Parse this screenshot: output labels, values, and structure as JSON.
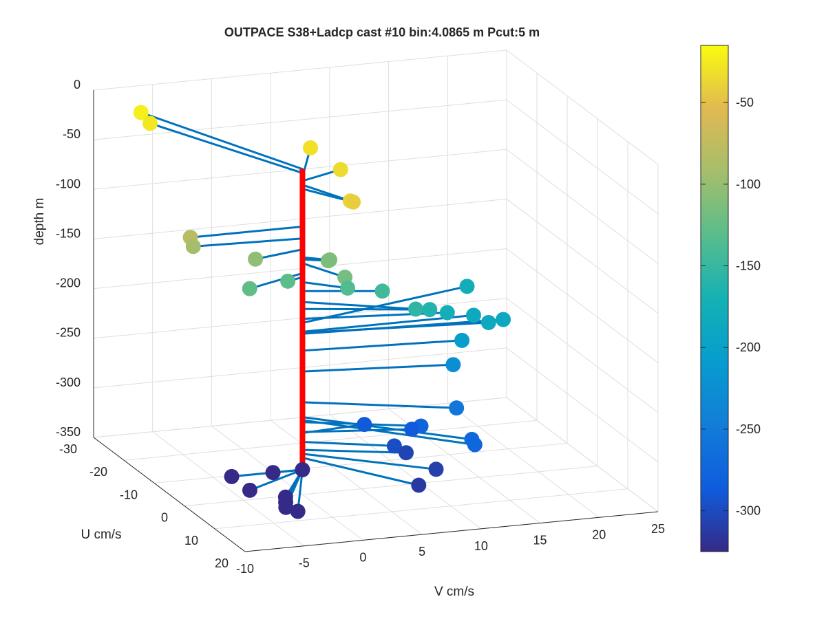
{
  "chart_data": {
    "type": "scatter",
    "title": "OUTPACE S38+Ladcp cast #10 bin:4.0865 m  Pcut:5 m",
    "xlabel": "V cm/s",
    "ylabel": "U cm/s",
    "zlabel": "depth m",
    "xlim": [
      -10,
      25
    ],
    "ylim": [
      -30,
      20
    ],
    "zlim": [
      -350,
      0
    ],
    "xticks": [
      "-10",
      "-5",
      "0",
      "5",
      "10",
      "15",
      "20",
      "25"
    ],
    "yticks": [
      "-30",
      "-20",
      "-10",
      "0",
      "10",
      "20"
    ],
    "zticks": [
      "0",
      "-50",
      "-100",
      "-150",
      "-200",
      "-250",
      "-300",
      "-350"
    ],
    "colorbar": {
      "colormap": "parula",
      "range": [
        -325,
        -15
      ],
      "ticks": [
        "-50",
        "-100",
        "-150",
        "-200",
        "-250",
        "-300"
      ]
    },
    "grid": true,
    "profile_line_color": "#ff0000",
    "vector_line_color": "#0072bd",
    "series": [
      {
        "points": [
          {
            "depth": -22,
            "v": -6.5,
            "u": -28
          },
          {
            "depth": -26,
            "v": -6.5,
            "u": -25
          },
          {
            "depth": -30,
            "v": 3.5,
            "u": -11
          },
          {
            "depth": -34,
            "v": 4.0,
            "u": -3
          },
          {
            "depth": -38,
            "v": 2.0,
            "u": 8
          },
          {
            "depth": -42,
            "v": 2.5,
            "u": 7
          },
          {
            "depth": -80,
            "v": -9.5,
            "u": 0
          },
          {
            "depth": -92,
            "v": -9.0,
            "u": -1
          },
          {
            "depth": -103,
            "v": -4.5,
            "u": 2
          },
          {
            "depth": -111,
            "v": 1.8,
            "u": 2
          },
          {
            "depth": -113,
            "v": 1.8,
            "u": 1.5
          },
          {
            "depth": -117,
            "v": 1.8,
            "u": 7
          },
          {
            "depth": -127,
            "v": -5.5,
            "u": 4
          },
          {
            "depth": -131,
            "v": -1.5,
            "u": 1
          },
          {
            "depth": -136,
            "v": 2.8,
            "u": 4
          },
          {
            "depth": -145,
            "v": 6.0,
            "u": 3
          },
          {
            "depth": -156,
            "v": 7.8,
            "u": 7
          },
          {
            "depth": -163,
            "v": 9.5,
            "u": 5
          },
          {
            "depth": -173,
            "v": 11.5,
            "u": 3
          },
          {
            "depth": -177,
            "v": 16.0,
            "u": -8
          },
          {
            "depth": -186,
            "v": 14.5,
            "u": 0
          },
          {
            "depth": -187,
            "v": 15.0,
            "u": 3
          },
          {
            "depth": -188,
            "v": 16.5,
            "u": 2
          },
          {
            "depth": -205,
            "v": 13.0,
            "u": 2
          },
          {
            "depth": -226,
            "v": 12.0,
            "u": 3
          },
          {
            "depth": -257,
            "v": 11.0,
            "u": 8
          },
          {
            "depth": -272,
            "v": 10.5,
            "u": 15
          },
          {
            "depth": -275,
            "v": 10.5,
            "u": 16
          },
          {
            "depth": -277,
            "v": 8.5,
            "u": 6
          },
          {
            "depth": -287,
            "v": 8.5,
            "u": 3
          },
          {
            "depth": -288,
            "v": 5.5,
            "u": -1
          },
          {
            "depth": -297,
            "v": 6.5,
            "u": 5
          },
          {
            "depth": -305,
            "v": 7.5,
            "u": 5
          },
          {
            "depth": -309,
            "v": 8.5,
            "u": 11
          },
          {
            "depth": -313,
            "v": 6.0,
            "u": 15
          }
        ]
      },
      {
        "points": [
          {
            "depth": -325,
            "v": 0.0,
            "u": 0
          },
          {
            "depth": -325,
            "v": -2.5,
            "u": 0
          },
          {
            "depth": -325,
            "v": -6.0,
            "u": 0
          },
          {
            "depth": -325,
            "v": -6.0,
            "u": 6
          },
          {
            "depth": -325,
            "v": -4.0,
            "u": 10
          },
          {
            "depth": -325,
            "v": -4.5,
            "u": 12
          },
          {
            "depth": -325,
            "v": -5.0,
            "u": 14
          },
          {
            "depth": -325,
            "v": -4.5,
            "u": 16
          }
        ]
      }
    ]
  }
}
